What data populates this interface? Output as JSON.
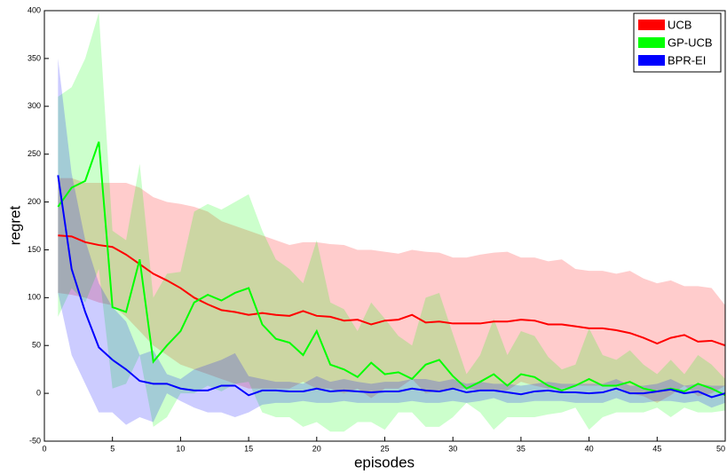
{
  "chart_data": {
    "type": "line",
    "x_label": "episodes",
    "y_label": "regret",
    "x": [
      1,
      2,
      3,
      4,
      5,
      6,
      7,
      8,
      9,
      10,
      11,
      12,
      13,
      14,
      15,
      16,
      17,
      18,
      19,
      20,
      21,
      22,
      23,
      24,
      25,
      26,
      27,
      28,
      29,
      30,
      31,
      32,
      33,
      34,
      35,
      36,
      37,
      38,
      39,
      40,
      41,
      42,
      43,
      44,
      45,
      46,
      47,
      48,
      49,
      50
    ],
    "series": [
      {
        "name": "UCB",
        "color": "#ff0000",
        "values": [
          165,
          164,
          158,
          155,
          153,
          145,
          135,
          125,
          118,
          110,
          100,
          93,
          87,
          85,
          82,
          84,
          82,
          81,
          86,
          81,
          80,
          76,
          77,
          72,
          76,
          77,
          82,
          74,
          75,
          73,
          73,
          73,
          75,
          75,
          77,
          76,
          72,
          72,
          70,
          68,
          68,
          66,
          63,
          58,
          52,
          58,
          61,
          54,
          55,
          50
        ],
        "upper": [
          225,
          225,
          220,
          220,
          220,
          220,
          215,
          205,
          200,
          198,
          195,
          190,
          180,
          175,
          170,
          165,
          160,
          155,
          158,
          158,
          156,
          155,
          150,
          150,
          148,
          146,
          150,
          148,
          147,
          142,
          142,
          145,
          147,
          148,
          142,
          142,
          138,
          140,
          130,
          128,
          128,
          125,
          128,
          120,
          115,
          118,
          112,
          112,
          110,
          92
        ],
        "lower": [
          105,
          103,
          100,
          95,
          92,
          80,
          65,
          50,
          40,
          30,
          25,
          20,
          15,
          10,
          5,
          5,
          5,
          5,
          12,
          5,
          5,
          0,
          5,
          -5,
          5,
          5,
          15,
          0,
          3,
          5,
          5,
          3,
          3,
          3,
          12,
          8,
          5,
          5,
          8,
          8,
          8,
          8,
          0,
          -3,
          -10,
          -2,
          8,
          -3,
          0,
          8
        ]
      },
      {
        "name": "GP-UCB",
        "color": "#00ff00",
        "values": [
          195,
          215,
          222,
          263,
          90,
          85,
          140,
          33,
          50,
          65,
          95,
          103,
          97,
          105,
          110,
          72,
          57,
          53,
          40,
          65,
          30,
          25,
          17,
          32,
          20,
          22,
          15,
          30,
          35,
          18,
          5,
          12,
          20,
          8,
          20,
          17,
          8,
          3,
          8,
          15,
          8,
          8,
          12,
          5,
          2,
          5,
          2,
          10,
          5,
          -2
        ],
        "upper": [
          310,
          320,
          350,
          398,
          170,
          160,
          240,
          100,
          125,
          127,
          190,
          198,
          192,
          200,
          208,
          170,
          140,
          130,
          115,
          160,
          95,
          88,
          65,
          95,
          78,
          60,
          50,
          100,
          105,
          62,
          20,
          40,
          78,
          40,
          65,
          60,
          38,
          25,
          30,
          68,
          40,
          35,
          45,
          30,
          20,
          35,
          20,
          40,
          30,
          15
        ],
        "lower": [
          80,
          110,
          95,
          130,
          5,
          10,
          40,
          -35,
          -25,
          0,
          0,
          8,
          2,
          10,
          12,
          -20,
          -25,
          -25,
          -35,
          -30,
          -40,
          -40,
          -30,
          -30,
          -38,
          -20,
          -20,
          -35,
          -35,
          -25,
          -10,
          -20,
          -38,
          -25,
          -25,
          -25,
          -22,
          -20,
          -15,
          -38,
          -25,
          -20,
          -20,
          -20,
          -15,
          -25,
          -15,
          -20,
          -20,
          -18
        ]
      },
      {
        "name": "BPR-EI",
        "color": "#0000ff",
        "values": [
          228,
          130,
          85,
          48,
          35,
          25,
          13,
          10,
          10,
          5,
          3,
          3,
          8,
          8,
          -2,
          3,
          3,
          2,
          2,
          5,
          2,
          3,
          2,
          1,
          2,
          2,
          5,
          3,
          2,
          5,
          1,
          3,
          3,
          1,
          -1,
          2,
          3,
          1,
          1,
          0,
          1,
          5,
          0,
          0,
          2,
          4,
          0,
          2,
          -4,
          0
        ],
        "upper": [
          350,
          230,
          160,
          115,
          90,
          75,
          40,
          45,
          20,
          15,
          25,
          30,
          35,
          42,
          18,
          15,
          12,
          12,
          10,
          18,
          12,
          15,
          12,
          10,
          12,
          12,
          15,
          15,
          12,
          15,
          10,
          12,
          10,
          10,
          8,
          10,
          12,
          10,
          10,
          10,
          10,
          15,
          8,
          8,
          10,
          15,
          8,
          10,
          8,
          8
        ],
        "lower": [
          105,
          40,
          10,
          -20,
          -20,
          -33,
          -25,
          -30,
          0,
          -8,
          -15,
          -20,
          -20,
          -25,
          -20,
          -12,
          -10,
          -10,
          -8,
          -10,
          -10,
          -8,
          -10,
          -10,
          -10,
          -10,
          -8,
          -10,
          -10,
          -8,
          -10,
          -8,
          -5,
          -10,
          -10,
          -8,
          -8,
          -8,
          -10,
          -10,
          -10,
          -5,
          -10,
          -10,
          -8,
          -8,
          -10,
          -8,
          -15,
          -10
        ]
      }
    ],
    "xlim": [
      0,
      50
    ],
    "xticks": [
      0,
      5,
      10,
      15,
      20,
      25,
      30,
      35,
      40,
      45,
      50
    ],
    "ylim": [
      -50,
      400
    ],
    "yticks": [
      -50,
      0,
      50,
      100,
      150,
      200,
      250,
      300,
      350,
      400
    ],
    "legend": "upper right"
  }
}
